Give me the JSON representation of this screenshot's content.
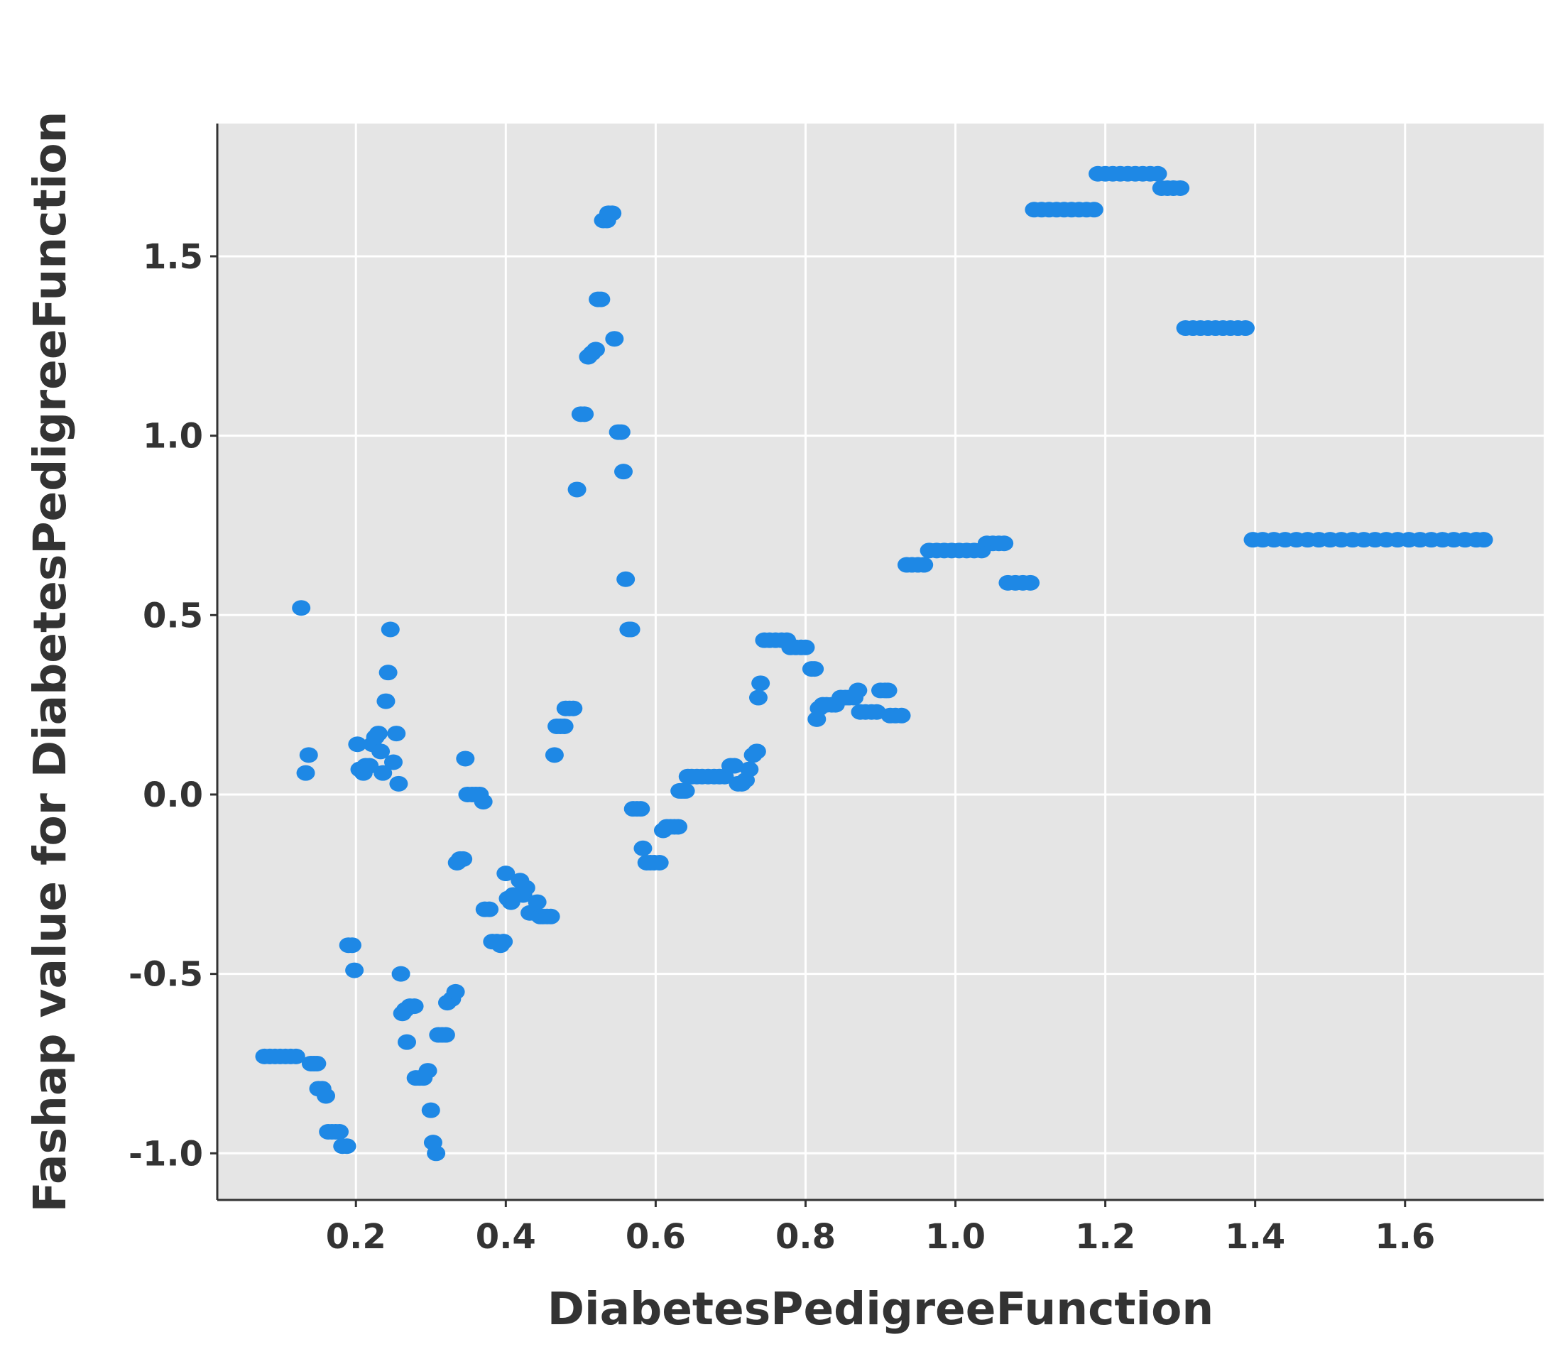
{
  "chart_data": {
    "type": "scatter",
    "xlabel": "DiabetesPedigreeFunction",
    "ylabel": "Fashap value for DiabetesPedigreeFunction",
    "xlim": [
      0.015,
      1.785
    ],
    "ylim": [
      -1.13,
      1.87
    ],
    "xticks": [
      0.2,
      0.4,
      0.6,
      0.8,
      1.0,
      1.2,
      1.4,
      1.6
    ],
    "xtick_labels": [
      "0.2",
      "0.4",
      "0.6",
      "0.8",
      "1.0",
      "1.2",
      "1.4",
      "1.6"
    ],
    "yticks": [
      1.5,
      1.0,
      0.5,
      0.0,
      -0.5,
      -1.0
    ],
    "ytick_labels": [
      "1.5",
      "1.0",
      "0.5",
      "0.0",
      "-0.5",
      "-1.0"
    ],
    "grid": true,
    "colors": {
      "background": "#e5e5e5",
      "point": "#1e88e5",
      "grid": "#ffffff",
      "axis": "#333333"
    },
    "series": [
      {
        "points": [
          [
            0.078,
            -0.73
          ],
          [
            0.085,
            -0.73
          ],
          [
            0.092,
            -0.73
          ],
          [
            0.099,
            -0.73
          ],
          [
            0.106,
            -0.73
          ],
          [
            0.113,
            -0.73
          ],
          [
            0.12,
            -0.73
          ],
          [
            0.127,
            0.52
          ],
          [
            0.133,
            0.06
          ],
          [
            0.137,
            0.11
          ],
          [
            0.14,
            -0.75
          ],
          [
            0.144,
            -0.75
          ],
          [
            0.148,
            -0.75
          ],
          [
            0.15,
            -0.82
          ],
          [
            0.155,
            -0.82
          ],
          [
            0.16,
            -0.84
          ],
          [
            0.163,
            -0.94
          ],
          [
            0.168,
            -0.94
          ],
          [
            0.173,
            -0.94
          ],
          [
            0.178,
            -0.94
          ],
          [
            0.182,
            -0.98
          ],
          [
            0.188,
            -0.98
          ],
          [
            0.19,
            -0.42
          ],
          [
            0.195,
            -0.42
          ],
          [
            0.198,
            -0.49
          ],
          [
            0.202,
            0.14
          ],
          [
            0.205,
            0.07
          ],
          [
            0.21,
            0.06
          ],
          [
            0.213,
            0.08
          ],
          [
            0.218,
            0.08
          ],
          [
            0.222,
            0.14
          ],
          [
            0.226,
            0.16
          ],
          [
            0.23,
            0.17
          ],
          [
            0.233,
            0.12
          ],
          [
            0.236,
            0.06
          ],
          [
            0.24,
            0.26
          ],
          [
            0.243,
            0.34
          ],
          [
            0.246,
            0.46
          ],
          [
            0.25,
            0.09
          ],
          [
            0.254,
            0.17
          ],
          [
            0.257,
            0.03
          ],
          [
            0.26,
            -0.5
          ],
          [
            0.262,
            -0.61
          ],
          [
            0.266,
            -0.6
          ],
          [
            0.268,
            -0.69
          ],
          [
            0.272,
            -0.59
          ],
          [
            0.278,
            -0.59
          ],
          [
            0.28,
            -0.79
          ],
          [
            0.285,
            -0.79
          ],
          [
            0.29,
            -0.79
          ],
          [
            0.296,
            -0.77
          ],
          [
            0.3,
            -0.88
          ],
          [
            0.303,
            -0.97
          ],
          [
            0.307,
            -1.0
          ],
          [
            0.31,
            -0.67
          ],
          [
            0.315,
            -0.67
          ],
          [
            0.32,
            -0.67
          ],
          [
            0.322,
            -0.58
          ],
          [
            0.328,
            -0.57
          ],
          [
            0.333,
            -0.55
          ],
          [
            0.335,
            -0.19
          ],
          [
            0.339,
            -0.18
          ],
          [
            0.343,
            -0.18
          ],
          [
            0.346,
            0.1
          ],
          [
            0.349,
            0.0
          ],
          [
            0.355,
            0.0
          ],
          [
            0.36,
            0.0
          ],
          [
            0.365,
            0.0
          ],
          [
            0.37,
            -0.02
          ],
          [
            0.372,
            -0.32
          ],
          [
            0.378,
            -0.32
          ],
          [
            0.382,
            -0.41
          ],
          [
            0.388,
            -0.41
          ],
          [
            0.393,
            -0.42
          ],
          [
            0.397,
            -0.41
          ],
          [
            0.4,
            -0.22
          ],
          [
            0.403,
            -0.29
          ],
          [
            0.407,
            -0.3
          ],
          [
            0.41,
            -0.28
          ],
          [
            0.415,
            -0.28
          ],
          [
            0.419,
            -0.24
          ],
          [
            0.423,
            -0.28
          ],
          [
            0.427,
            -0.26
          ],
          [
            0.432,
            -0.33
          ],
          [
            0.437,
            -0.33
          ],
          [
            0.442,
            -0.3
          ],
          [
            0.446,
            -0.34
          ],
          [
            0.45,
            -0.34
          ],
          [
            0.455,
            -0.34
          ],
          [
            0.46,
            -0.34
          ],
          [
            0.465,
            0.11
          ],
          [
            0.468,
            0.19
          ],
          [
            0.473,
            0.19
          ],
          [
            0.478,
            0.19
          ],
          [
            0.48,
            0.24
          ],
          [
            0.485,
            0.24
          ],
          [
            0.49,
            0.24
          ],
          [
            0.495,
            0.85
          ],
          [
            0.5,
            1.06
          ],
          [
            0.505,
            1.06
          ],
          [
            0.51,
            1.22
          ],
          [
            0.515,
            1.23
          ],
          [
            0.52,
            1.24
          ],
          [
            0.523,
            1.38
          ],
          [
            0.527,
            1.38
          ],
          [
            0.53,
            1.6
          ],
          [
            0.535,
            1.6
          ],
          [
            0.537,
            1.62
          ],
          [
            0.542,
            1.62
          ],
          [
            0.545,
            1.27
          ],
          [
            0.55,
            1.01
          ],
          [
            0.554,
            1.01
          ],
          [
            0.557,
            0.9
          ],
          [
            0.56,
            0.6
          ],
          [
            0.564,
            0.46
          ],
          [
            0.567,
            0.46
          ],
          [
            0.57,
            -0.04
          ],
          [
            0.575,
            -0.04
          ],
          [
            0.58,
            -0.04
          ],
          [
            0.583,
            -0.15
          ],
          [
            0.588,
            -0.19
          ],
          [
            0.593,
            -0.19
          ],
          [
            0.598,
            -0.19
          ],
          [
            0.605,
            -0.19
          ],
          [
            0.61,
            -0.1
          ],
          [
            0.615,
            -0.09
          ],
          [
            0.62,
            -0.09
          ],
          [
            0.625,
            -0.09
          ],
          [
            0.63,
            -0.09
          ],
          [
            0.632,
            0.01
          ],
          [
            0.636,
            0.01
          ],
          [
            0.64,
            0.01
          ],
          [
            0.643,
            0.05
          ],
          [
            0.648,
            0.05
          ],
          [
            0.655,
            0.05
          ],
          [
            0.662,
            0.05
          ],
          [
            0.67,
            0.05
          ],
          [
            0.678,
            0.05
          ],
          [
            0.685,
            0.05
          ],
          [
            0.692,
            0.05
          ],
          [
            0.7,
            0.08
          ],
          [
            0.705,
            0.08
          ],
          [
            0.71,
            0.03
          ],
          [
            0.715,
            0.03
          ],
          [
            0.72,
            0.04
          ],
          [
            0.725,
            0.07
          ],
          [
            0.73,
            0.11
          ],
          [
            0.735,
            0.12
          ],
          [
            0.737,
            0.27
          ],
          [
            0.74,
            0.31
          ],
          [
            0.745,
            0.43
          ],
          [
            0.752,
            0.43
          ],
          [
            0.76,
            0.43
          ],
          [
            0.768,
            0.43
          ],
          [
            0.775,
            0.43
          ],
          [
            0.78,
            0.41
          ],
          [
            0.787,
            0.41
          ],
          [
            0.794,
            0.41
          ],
          [
            0.8,
            0.41
          ],
          [
            0.808,
            0.35
          ],
          [
            0.812,
            0.35
          ],
          [
            0.815,
            0.21
          ],
          [
            0.818,
            0.24
          ],
          [
            0.823,
            0.25
          ],
          [
            0.828,
            0.25
          ],
          [
            0.835,
            0.25
          ],
          [
            0.84,
            0.25
          ],
          [
            0.847,
            0.27
          ],
          [
            0.853,
            0.27
          ],
          [
            0.858,
            0.27
          ],
          [
            0.865,
            0.27
          ],
          [
            0.87,
            0.29
          ],
          [
            0.873,
            0.23
          ],
          [
            0.88,
            0.23
          ],
          [
            0.888,
            0.23
          ],
          [
            0.895,
            0.23
          ],
          [
            0.9,
            0.29
          ],
          [
            0.906,
            0.29
          ],
          [
            0.91,
            0.29
          ],
          [
            0.913,
            0.22
          ],
          [
            0.92,
            0.22
          ],
          [
            0.928,
            0.22
          ],
          [
            0.935,
            0.64
          ],
          [
            0.942,
            0.64
          ],
          [
            0.95,
            0.64
          ],
          [
            0.958,
            0.64
          ],
          [
            0.965,
            0.68
          ],
          [
            0.975,
            0.68
          ],
          [
            0.985,
            0.68
          ],
          [
            0.995,
            0.68
          ],
          [
            1.005,
            0.68
          ],
          [
            1.015,
            0.68
          ],
          [
            1.025,
            0.68
          ],
          [
            1.035,
            0.68
          ],
          [
            1.042,
            0.7
          ],
          [
            1.05,
            0.7
          ],
          [
            1.058,
            0.7
          ],
          [
            1.065,
            0.7
          ],
          [
            1.07,
            0.59
          ],
          [
            1.08,
            0.59
          ],
          [
            1.09,
            0.59
          ],
          [
            1.1,
            0.59
          ],
          [
            1.105,
            1.63
          ],
          [
            1.115,
            1.63
          ],
          [
            1.125,
            1.63
          ],
          [
            1.135,
            1.63
          ],
          [
            1.145,
            1.63
          ],
          [
            1.155,
            1.63
          ],
          [
            1.165,
            1.63
          ],
          [
            1.175,
            1.63
          ],
          [
            1.185,
            1.63
          ],
          [
            1.19,
            1.73
          ],
          [
            1.2,
            1.73
          ],
          [
            1.21,
            1.73
          ],
          [
            1.22,
            1.73
          ],
          [
            1.23,
            1.73
          ],
          [
            1.24,
            1.73
          ],
          [
            1.25,
            1.73
          ],
          [
            1.26,
            1.73
          ],
          [
            1.27,
            1.73
          ],
          [
            1.275,
            1.69
          ],
          [
            1.283,
            1.69
          ],
          [
            1.291,
            1.69
          ],
          [
            1.3,
            1.69
          ],
          [
            1.307,
            1.3
          ],
          [
            1.317,
            1.3
          ],
          [
            1.327,
            1.3
          ],
          [
            1.337,
            1.3
          ],
          [
            1.347,
            1.3
          ],
          [
            1.357,
            1.3
          ],
          [
            1.367,
            1.3
          ],
          [
            1.377,
            1.3
          ],
          [
            1.387,
            1.3
          ],
          [
            1.397,
            0.71
          ],
          [
            1.41,
            0.71
          ],
          [
            1.425,
            0.71
          ],
          [
            1.44,
            0.71
          ],
          [
            1.455,
            0.71
          ],
          [
            1.47,
            0.71
          ],
          [
            1.485,
            0.71
          ],
          [
            1.5,
            0.71
          ],
          [
            1.515,
            0.71
          ],
          [
            1.53,
            0.71
          ],
          [
            1.545,
            0.71
          ],
          [
            1.56,
            0.71
          ],
          [
            1.575,
            0.71
          ],
          [
            1.59,
            0.71
          ],
          [
            1.605,
            0.71
          ],
          [
            1.62,
            0.71
          ],
          [
            1.635,
            0.71
          ],
          [
            1.65,
            0.71
          ],
          [
            1.665,
            0.71
          ],
          [
            1.68,
            0.71
          ],
          [
            1.695,
            0.71
          ],
          [
            1.705,
            0.71
          ]
        ]
      }
    ]
  }
}
